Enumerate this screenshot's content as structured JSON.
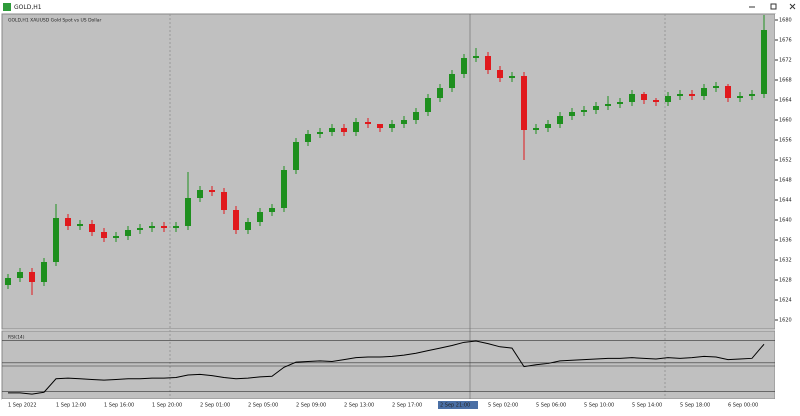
{
  "window": {
    "title": "GOLD,H1"
  },
  "chart_data": {
    "type": "candlestick",
    "header": "GOLD,H1  XAUUSD Gold Spot vs US Dollar",
    "up_color": "#1e8f1e",
    "down_color": "#e0191d",
    "open": [
      1627.0,
      1628.4,
      1629.6,
      1627.6,
      1631.6,
      1640.4,
      1638.8,
      1639.2,
      1637.6,
      1636.4,
      1636.8,
      1638.0,
      1638.4,
      1638.8,
      1638.4,
      1638.8,
      1644.4,
      1646.0,
      1645.6,
      1642.0,
      1638.0,
      1639.6,
      1641.6,
      1642.4,
      1650.0,
      1655.6,
      1657.2,
      1657.6,
      1658.4,
      1657.6,
      1659.6,
      1659.2,
      1658.4,
      1659.2,
      1660.0,
      1661.6,
      1664.4,
      1666.4,
      1669.2,
      1672.4,
      1672.8,
      1670.0,
      1668.4,
      1668.8,
      1658.0,
      1658.4,
      1659.2,
      1660.8,
      1661.6,
      1662.0,
      1662.8,
      1663.2,
      1663.6,
      1665.2,
      1664.0,
      1663.6,
      1664.8,
      1665.2,
      1664.8,
      1666.4,
      1666.8,
      1664.4,
      1664.8,
      1665.2
    ],
    "close": [
      1628.4,
      1629.6,
      1627.6,
      1631.6,
      1640.4,
      1638.8,
      1639.2,
      1637.6,
      1636.4,
      1636.8,
      1638.0,
      1638.4,
      1638.8,
      1638.4,
      1638.8,
      1644.4,
      1646.0,
      1645.6,
      1642.0,
      1638.0,
      1639.6,
      1641.6,
      1642.4,
      1650.0,
      1655.6,
      1657.2,
      1657.6,
      1658.4,
      1657.6,
      1659.6,
      1659.2,
      1658.4,
      1659.2,
      1660.0,
      1661.6,
      1664.4,
      1666.4,
      1669.2,
      1672.4,
      1672.8,
      1670.0,
      1668.4,
      1668.8,
      1658.0,
      1658.4,
      1659.2,
      1660.8,
      1661.6,
      1662.0,
      1662.8,
      1663.2,
      1663.6,
      1665.2,
      1664.0,
      1663.6,
      1664.8,
      1665.2,
      1664.8,
      1666.4,
      1666.8,
      1664.4,
      1664.8,
      1665.2,
      1678.0
    ],
    "high": [
      1629.2,
      1630.4,
      1630.4,
      1632.4,
      1643.2,
      1641.2,
      1640.0,
      1640.0,
      1638.4,
      1637.6,
      1638.8,
      1639.2,
      1639.6,
      1639.6,
      1639.6,
      1649.6,
      1646.8,
      1646.8,
      1646.4,
      1642.8,
      1640.4,
      1642.4,
      1643.2,
      1650.8,
      1656.4,
      1658.0,
      1658.4,
      1659.2,
      1659.2,
      1660.4,
      1660.4,
      1659.2,
      1660.0,
      1660.8,
      1662.4,
      1665.2,
      1667.2,
      1670.0,
      1673.2,
      1674.4,
      1673.6,
      1670.8,
      1669.6,
      1669.6,
      1659.2,
      1660.0,
      1661.6,
      1662.4,
      1662.8,
      1663.6,
      1664.8,
      1664.4,
      1666.0,
      1665.6,
      1664.4,
      1665.6,
      1666.0,
      1666.0,
      1667.2,
      1667.6,
      1667.2,
      1665.6,
      1666.0,
      1681.0
    ],
    "low": [
      1626.2,
      1627.6,
      1625.0,
      1626.8,
      1630.8,
      1638.0,
      1638.0,
      1636.8,
      1635.6,
      1635.6,
      1636.0,
      1637.2,
      1637.6,
      1637.6,
      1637.6,
      1638.0,
      1643.6,
      1644.8,
      1641.2,
      1637.2,
      1637.2,
      1638.8,
      1640.8,
      1641.6,
      1649.2,
      1654.8,
      1656.4,
      1656.8,
      1656.8,
      1656.8,
      1658.4,
      1657.6,
      1657.6,
      1658.4,
      1659.2,
      1660.8,
      1663.6,
      1665.6,
      1668.4,
      1671.6,
      1669.2,
      1667.6,
      1667.6,
      1652.0,
      1657.2,
      1657.6,
      1658.4,
      1660.0,
      1660.8,
      1661.2,
      1662.0,
      1662.4,
      1662.8,
      1663.2,
      1662.8,
      1662.8,
      1664.0,
      1664.0,
      1664.0,
      1665.6,
      1663.6,
      1663.6,
      1664.0,
      1664.4
    ],
    "ylim": [
      1618.4,
      1681.2
    ],
    "yticks": [
      1620,
      1624,
      1628,
      1632,
      1636,
      1640,
      1644,
      1648,
      1652,
      1656,
      1660,
      1664,
      1668,
      1672,
      1676,
      1680
    ],
    "indicator": {
      "label": "RSI(14)",
      "color": "#000000",
      "values": [
        8,
        8,
        6,
        9,
        30,
        31,
        30,
        29,
        28,
        29,
        30,
        30,
        31,
        31,
        32,
        36,
        37,
        35,
        32,
        30,
        31,
        33,
        34,
        48,
        56,
        57,
        58,
        57,
        60,
        63,
        64,
        64,
        65,
        67,
        70,
        74,
        78,
        82,
        87,
        89,
        85,
        80,
        78,
        49,
        52,
        54,
        58,
        59,
        60,
        61,
        62,
        62,
        63,
        62,
        61,
        63,
        62,
        63,
        65,
        64,
        60,
        61,
        62,
        84
      ],
      "ylim": [
        0,
        100
      ],
      "levels": [
        90,
        55,
        50,
        10
      ]
    },
    "time_labels": [
      "1 Sep 2022",
      "1 Sep 12:00",
      "1 Sep 16:00",
      "1 Sep 20:00",
      "2 Sep 01:00",
      "2 Sep 05:00",
      "2 Sep 09:00",
      "2 Sep 13:00",
      "2 Sep 17:00",
      "2 Sep 21:00",
      "5 Sep 02:00",
      "5 Sep 06:00",
      "5 Sep 10:00",
      "5 Sep 14:00",
      "5 Sep 18:00",
      "6 Sep 00:00"
    ]
  }
}
